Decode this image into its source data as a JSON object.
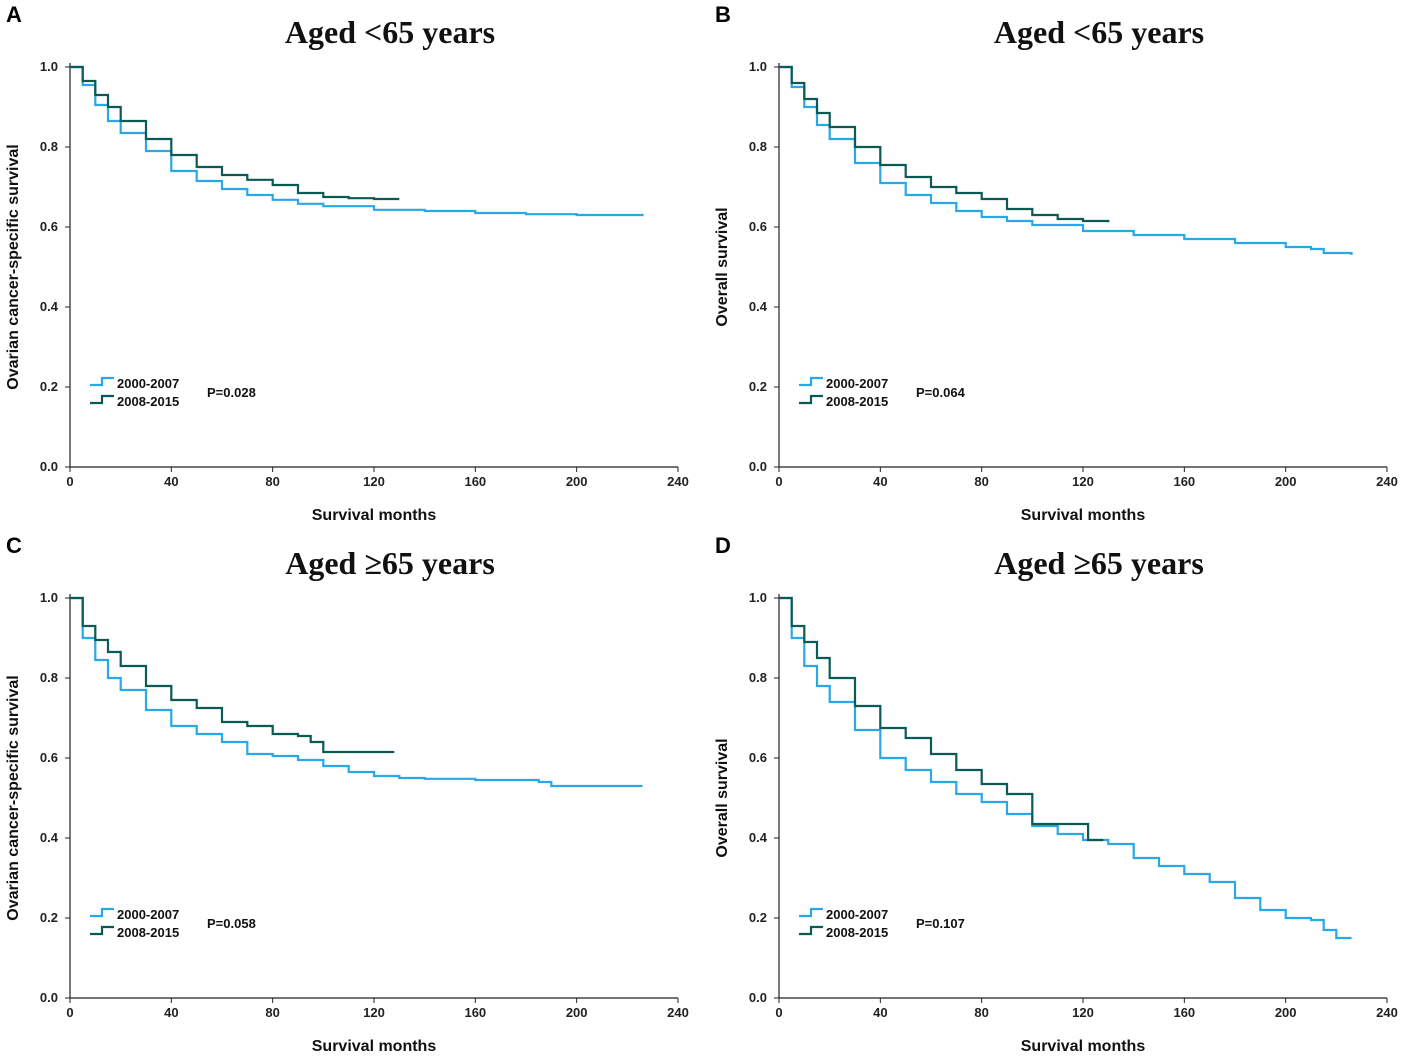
{
  "colors": {
    "series_2000_2007": "#2aa7e6",
    "series_2008_2015": "#0c5a54",
    "axis": "#222222"
  },
  "chart_data": [
    {
      "panel": "A",
      "title": "Aged <65 years",
      "type": "line",
      "xlabel": "Survival months",
      "ylabel": "Ovarian cancer-specific survival",
      "xlim": [
        0,
        240
      ],
      "ylim": [
        0,
        1.0
      ],
      "xticks": [
        "0",
        "40",
        "80",
        "120",
        "160",
        "200",
        "240"
      ],
      "yticks": [
        "0.0",
        "0.2",
        "0.4",
        "0.6",
        "0.8",
        "1.0"
      ],
      "p_value": "P=0.028",
      "series": [
        {
          "name": "2000-2007",
          "x": [
            0,
            5,
            10,
            15,
            20,
            30,
            40,
            50,
            60,
            70,
            80,
            90,
            100,
            120,
            140,
            160,
            180,
            200,
            226
          ],
          "y": [
            1.0,
            0.955,
            0.905,
            0.865,
            0.835,
            0.79,
            0.74,
            0.715,
            0.695,
            0.68,
            0.668,
            0.658,
            0.652,
            0.643,
            0.64,
            0.635,
            0.632,
            0.63,
            0.627
          ]
        },
        {
          "name": "2008-2015",
          "x": [
            0,
            5,
            10,
            15,
            20,
            30,
            40,
            50,
            60,
            70,
            80,
            90,
            100,
            110,
            120,
            130
          ],
          "y": [
            1.0,
            0.965,
            0.93,
            0.9,
            0.865,
            0.82,
            0.78,
            0.75,
            0.73,
            0.718,
            0.705,
            0.685,
            0.675,
            0.672,
            0.67,
            0.67
          ]
        }
      ]
    },
    {
      "panel": "B",
      "title": "Aged <65 years",
      "type": "line",
      "xlabel": "Survival months",
      "ylabel": "Overall survival",
      "xlim": [
        0,
        240
      ],
      "ylim": [
        0,
        1.0
      ],
      "xticks": [
        "0",
        "40",
        "80",
        "120",
        "160",
        "200",
        "240"
      ],
      "yticks": [
        "0.0",
        "0.2",
        "0.4",
        "0.6",
        "0.8",
        "1.0"
      ],
      "p_value": "P=0.064",
      "series": [
        {
          "name": "2000-2007",
          "x": [
            0,
            5,
            10,
            15,
            20,
            30,
            40,
            50,
            60,
            70,
            80,
            90,
            100,
            120,
            140,
            160,
            180,
            200,
            210,
            215,
            226
          ],
          "y": [
            1.0,
            0.95,
            0.9,
            0.855,
            0.82,
            0.76,
            0.71,
            0.68,
            0.66,
            0.64,
            0.625,
            0.615,
            0.605,
            0.59,
            0.58,
            0.57,
            0.56,
            0.55,
            0.545,
            0.535,
            0.53
          ]
        },
        {
          "name": "2008-2015",
          "x": [
            0,
            5,
            10,
            15,
            20,
            30,
            40,
            50,
            60,
            70,
            80,
            90,
            100,
            110,
            120,
            130
          ],
          "y": [
            1.0,
            0.96,
            0.92,
            0.885,
            0.85,
            0.8,
            0.755,
            0.725,
            0.7,
            0.685,
            0.67,
            0.645,
            0.63,
            0.62,
            0.615,
            0.612
          ]
        }
      ]
    },
    {
      "panel": "C",
      "title": "Aged ≥65 years",
      "type": "line",
      "xlabel": "Survival months",
      "ylabel": "Ovarian cancer-specific survival",
      "xlim": [
        0,
        240
      ],
      "ylim": [
        0,
        1.0
      ],
      "xticks": [
        "0",
        "40",
        "80",
        "120",
        "160",
        "200",
        "240"
      ],
      "yticks": [
        "0.0",
        "0.2",
        "0.4",
        "0.6",
        "0.8",
        "1.0"
      ],
      "p_value": "P=0.058",
      "series": [
        {
          "name": "2000-2007",
          "x": [
            0,
            5,
            10,
            15,
            20,
            30,
            40,
            50,
            60,
            70,
            80,
            90,
            100,
            110,
            120,
            130,
            140,
            160,
            185,
            190,
            226
          ],
          "y": [
            1.0,
            0.9,
            0.845,
            0.8,
            0.77,
            0.72,
            0.68,
            0.66,
            0.64,
            0.61,
            0.605,
            0.595,
            0.58,
            0.565,
            0.555,
            0.55,
            0.548,
            0.545,
            0.54,
            0.53,
            0.53
          ]
        },
        {
          "name": "2008-2015",
          "x": [
            0,
            5,
            10,
            15,
            20,
            30,
            40,
            50,
            60,
            70,
            80,
            90,
            95,
            100,
            110,
            120,
            128
          ],
          "y": [
            1.0,
            0.93,
            0.895,
            0.865,
            0.83,
            0.78,
            0.745,
            0.725,
            0.69,
            0.68,
            0.66,
            0.655,
            0.64,
            0.615,
            0.615,
            0.615,
            0.615
          ]
        }
      ]
    },
    {
      "panel": "D",
      "title": "Aged ≥65 years",
      "type": "line",
      "xlabel": "Survival months",
      "ylabel": "Overall survival",
      "xlim": [
        0,
        240
      ],
      "ylim": [
        0,
        1.0
      ],
      "xticks": [
        "0",
        "40",
        "80",
        "120",
        "160",
        "200",
        "240"
      ],
      "yticks": [
        "0.0",
        "0.2",
        "0.4",
        "0.6",
        "0.8",
        "1.0"
      ],
      "p_value": "P=0.107",
      "series": [
        {
          "name": "2000-2007",
          "x": [
            0,
            5,
            10,
            15,
            20,
            30,
            40,
            50,
            60,
            70,
            80,
            90,
            100,
            110,
            120,
            130,
            140,
            150,
            160,
            170,
            180,
            190,
            200,
            210,
            215,
            220,
            226
          ],
          "y": [
            1.0,
            0.9,
            0.83,
            0.78,
            0.74,
            0.67,
            0.6,
            0.57,
            0.54,
            0.51,
            0.49,
            0.46,
            0.43,
            0.41,
            0.395,
            0.385,
            0.35,
            0.33,
            0.31,
            0.29,
            0.25,
            0.22,
            0.2,
            0.195,
            0.17,
            0.15,
            0.15
          ]
        },
        {
          "name": "2008-2015",
          "x": [
            0,
            5,
            10,
            15,
            20,
            30,
            40,
            50,
            60,
            70,
            80,
            90,
            100,
            110,
            120,
            122,
            128
          ],
          "y": [
            1.0,
            0.93,
            0.89,
            0.85,
            0.8,
            0.73,
            0.675,
            0.65,
            0.61,
            0.57,
            0.535,
            0.51,
            0.435,
            0.435,
            0.435,
            0.395,
            0.395
          ]
        }
      ]
    }
  ]
}
